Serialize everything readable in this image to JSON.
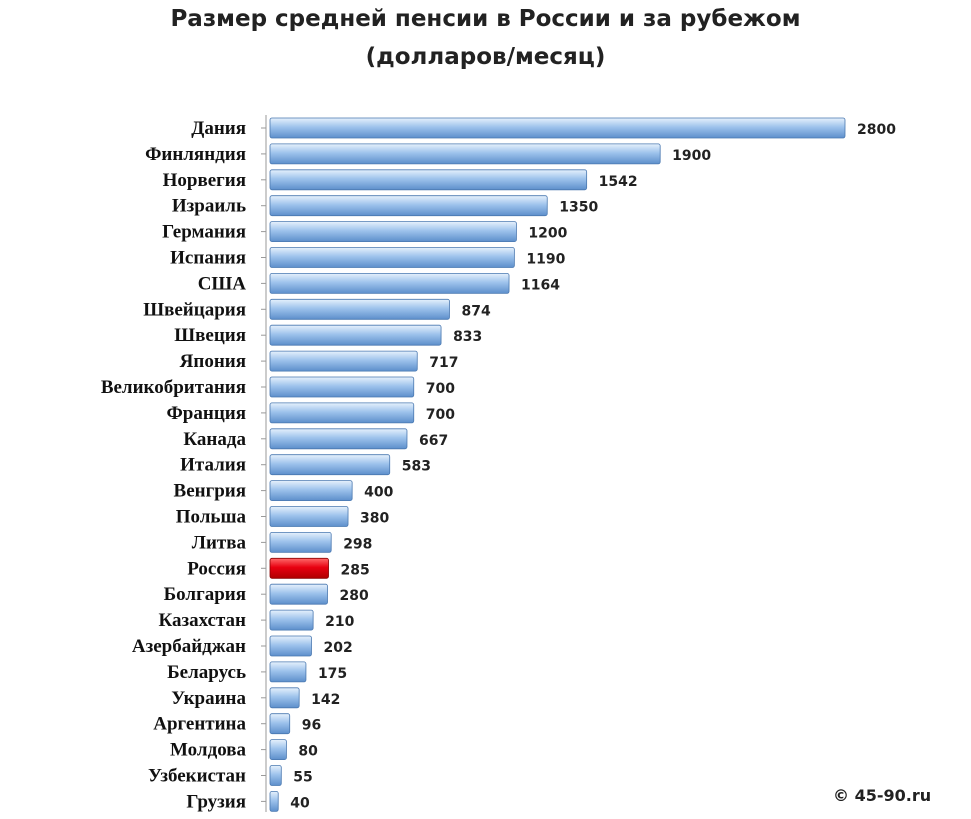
{
  "chart_data": {
    "type": "bar",
    "orientation": "horizontal",
    "title": "Размер средней пенсии в России и за рубежом",
    "subtitle": "(долларов/месяц)",
    "categories": [
      "Дания",
      "Финляндия",
      "Норвегия",
      "Израиль",
      "Германия",
      "Испания",
      "США",
      "Швейцария",
      "Швеция",
      "Япония",
      "Великобритания",
      "Франция",
      "Канада",
      "Италия",
      "Венгрия",
      "Польша",
      "Литва",
      "Россия",
      "Болгария",
      "Казахстан",
      "Азербайджан",
      "Беларусь",
      "Украина",
      "Аргентина",
      "Молдова",
      "Узбекистан",
      "Грузия"
    ],
    "values": [
      2800,
      1900,
      1542,
      1350,
      1200,
      1190,
      1164,
      874,
      833,
      717,
      700,
      700,
      667,
      583,
      400,
      380,
      298,
      285,
      280,
      210,
      202,
      175,
      142,
      96,
      80,
      55,
      40
    ],
    "highlight": "Россия",
    "colors": {
      "bar": "#8fb8e6",
      "highlight": "#e3000f"
    },
    "grid": false,
    "legend": "none"
  },
  "footer": {
    "copyright": "© 45-90.ru"
  }
}
